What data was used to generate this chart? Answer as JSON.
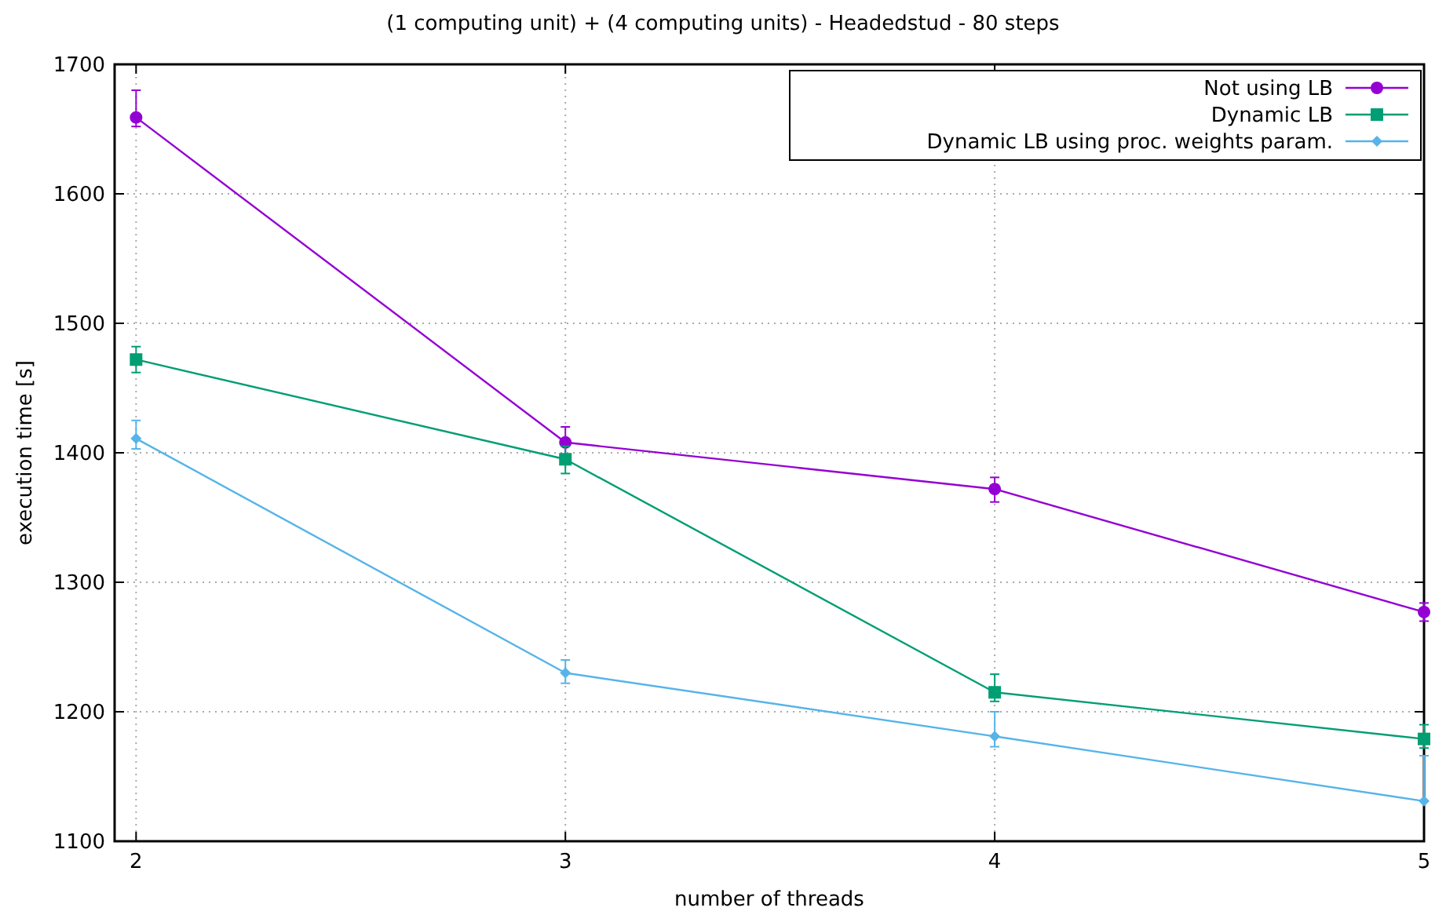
{
  "chart_data": {
    "type": "line",
    "title": "(1 computing unit) + (4 computing units) - Headedstud - 80 steps",
    "xlabel": "number of threads",
    "ylabel": "execution time [s]",
    "x": [
      2,
      3,
      4,
      5
    ],
    "xlim": [
      1.95,
      5
    ],
    "xticks": [
      2,
      3,
      4,
      5
    ],
    "ylim": [
      1100,
      1700
    ],
    "yticks": [
      1100,
      1200,
      1300,
      1400,
      1500,
      1600,
      1700
    ],
    "grid": true,
    "legend": "top right",
    "series": [
      {
        "name": "Not using LB",
        "color": "#9400d3",
        "marker": "circle",
        "values": [
          1659,
          1408,
          1372,
          1277
        ],
        "errors": [
          [
            1652,
            1680
          ],
          [
            1398,
            1420
          ],
          [
            1362,
            1381
          ],
          [
            1270,
            1284
          ]
        ]
      },
      {
        "name": "Dynamic LB",
        "color": "#009e73",
        "marker": "square",
        "values": [
          1472,
          1395,
          1215,
          1179
        ],
        "errors": [
          [
            1462,
            1482
          ],
          [
            1384,
            1405
          ],
          [
            1208,
            1229
          ],
          [
            1172,
            1190
          ]
        ]
      },
      {
        "name": "Dynamic LB using proc. weights param.",
        "color": "#56b4e9",
        "marker": "diamond",
        "values": [
          1411,
          1230,
          1181,
          1131
        ],
        "errors": [
          [
            1403,
            1425
          ],
          [
            1222,
            1240
          ],
          [
            1173,
            1200
          ],
          [
            1131,
            1166
          ]
        ]
      }
    ]
  }
}
